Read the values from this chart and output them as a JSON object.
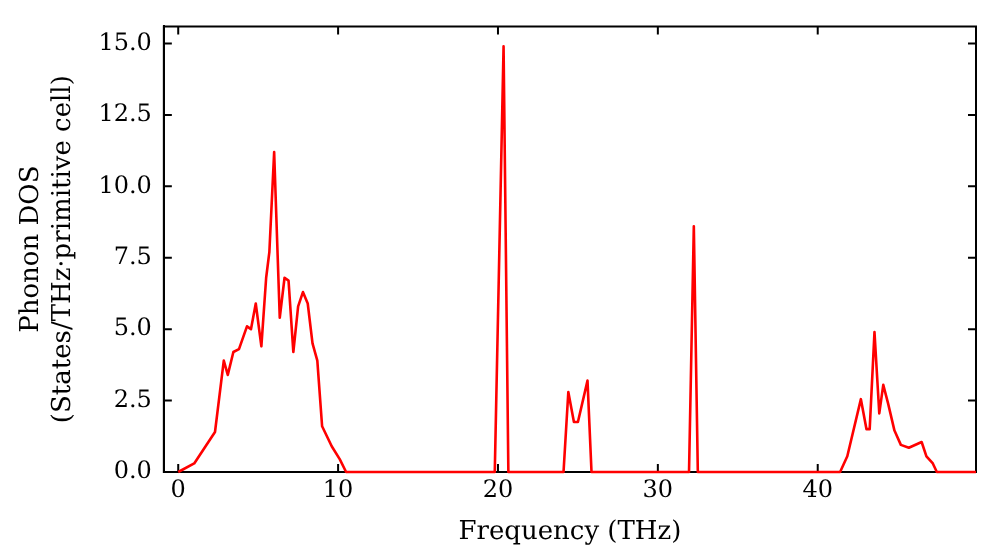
{
  "chart_data": {
    "type": "line",
    "xlabel": "Frequency (THz)",
    "ylabel": "Phonon DOS\n(States/THz·primitive cell)",
    "xlim": [
      -0.9,
      49.9
    ],
    "ylim": [
      0,
      15.6
    ],
    "xticks": [
      0,
      10,
      20,
      30,
      40
    ],
    "yticks": [
      {
        "value": 0,
        "label": "0.0"
      },
      {
        "value": 2.5,
        "label": "2.5"
      },
      {
        "value": 5,
        "label": "5.0"
      },
      {
        "value": 7.5,
        "label": "7.5"
      },
      {
        "value": 10,
        "label": "10.0"
      },
      {
        "value": 12.5,
        "label": "12.5"
      },
      {
        "value": 15,
        "label": "15.0"
      }
    ],
    "grid": false,
    "legend": false,
    "marker": "none",
    "line_style": "solid",
    "series": [
      {
        "color": "#ff0000",
        "x": [
          0,
          1.0,
          2.3,
          2.85,
          3.1,
          3.45,
          3.8,
          4.3,
          4.55,
          4.85,
          5.2,
          5.5,
          5.7,
          6.0,
          6.35,
          6.65,
          6.9,
          7.2,
          7.5,
          7.8,
          8.1,
          8.4,
          8.7,
          9.0,
          9.6,
          10.1,
          10.5,
          19.8,
          20.35,
          20.65,
          24.1,
          24.4,
          24.75,
          25.0,
          25.6,
          25.85,
          31.95,
          32.25,
          32.5,
          41.4,
          41.85,
          42.7,
          43.05,
          43.25,
          43.55,
          43.85,
          44.1,
          44.4,
          44.8,
          45.2,
          45.7,
          46.5,
          46.8,
          47.2,
          47.45,
          49.9
        ],
        "values": [
          0,
          0.3,
          1.4,
          3.9,
          3.4,
          4.2,
          4.3,
          5.1,
          5.0,
          5.9,
          4.4,
          6.8,
          7.7,
          11.2,
          5.4,
          6.8,
          6.7,
          4.2,
          5.8,
          6.3,
          5.9,
          4.5,
          3.9,
          1.6,
          0.9,
          0.45,
          0,
          0,
          14.9,
          0,
          0,
          2.8,
          1.75,
          1.75,
          3.2,
          0,
          0,
          8.6,
          0,
          0,
          0.55,
          2.55,
          1.5,
          1.5,
          4.9,
          2.05,
          3.05,
          2.4,
          1.45,
          0.95,
          0.85,
          1.05,
          0.55,
          0.3,
          0,
          0
        ]
      }
    ]
  }
}
